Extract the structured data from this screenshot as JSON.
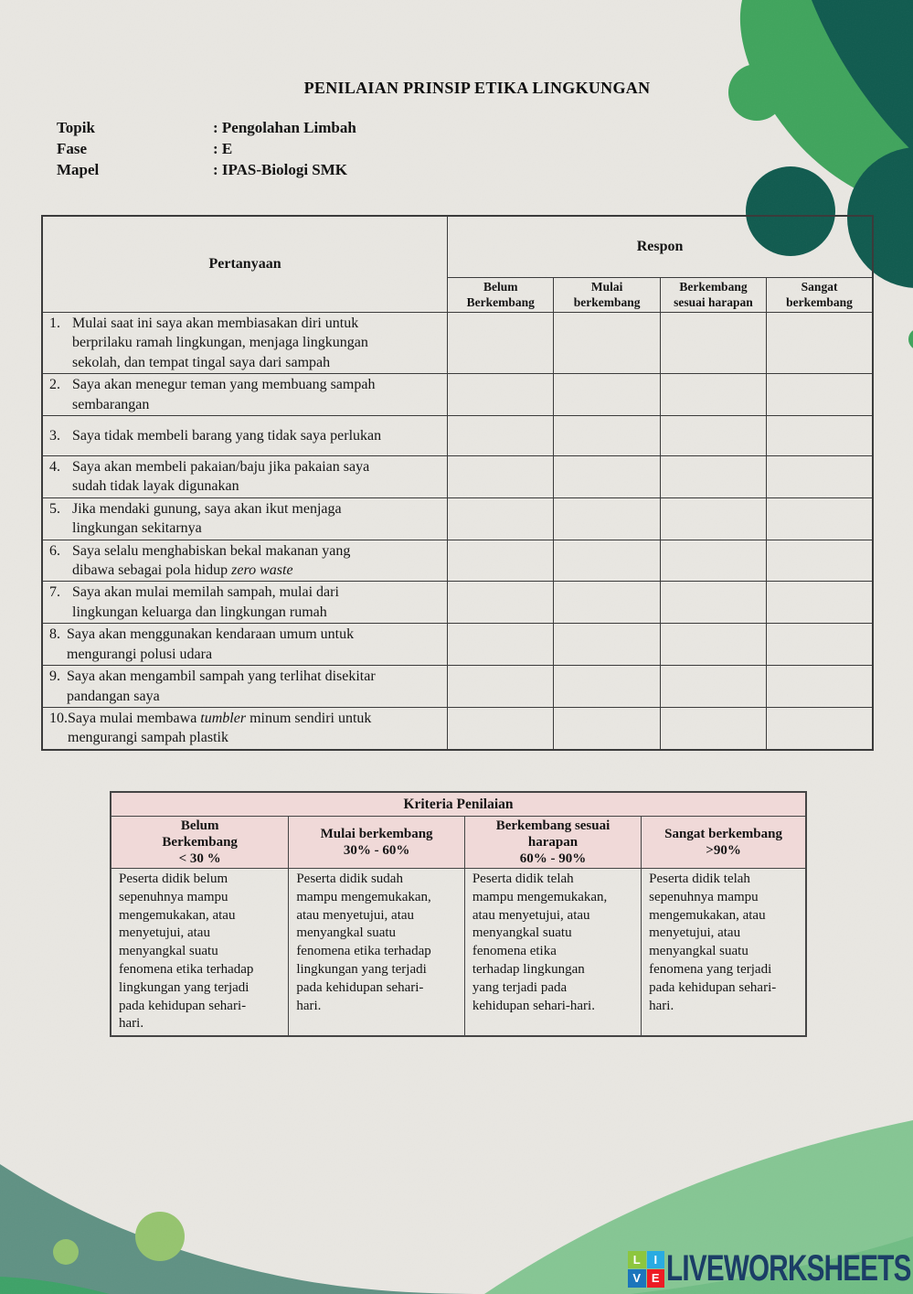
{
  "page": {
    "title": "PENILAIAN PRINSIP ETIKA LINGKUNGAN"
  },
  "info": [
    {
      "label": "Topik",
      "value": ": Pengolahan Limbah"
    },
    {
      "label": "Fase",
      "value": ": E"
    },
    {
      "label": "Mapel",
      "value": ": IPAS-Biologi SMK"
    }
  ],
  "respon_table": {
    "col_question": "Pertanyaan",
    "col_group": "Respon",
    "levels": [
      "Belum\nBerkembang",
      "Mulai\nberkembang",
      "Berkembang\nsesuai harapan",
      "Sangat\nberkembang"
    ],
    "italic_phrases": [
      "zero waste",
      "tumbler"
    ],
    "questions": [
      {
        "num": "1.",
        "text": "Mulai saat ini saya akan membiasakan diri untuk\nberprilaku ramah lingkungan, menjaga lingkungan\nsekolah, dan tempat tingal saya dari sampah"
      },
      {
        "num": "2.",
        "text": "Saya akan menegur teman yang membuang sampah\nsembarangan"
      },
      {
        "num": "3.",
        "text": "Saya tidak membeli barang yang tidak saya perlukan"
      },
      {
        "num": "4.",
        "text": "Saya akan membeli pakaian/baju jika pakaian saya\nsudah tidak layak digunakan"
      },
      {
        "num": "5.",
        "text": "Jika mendaki gunung, saya akan ikut menjaga\nlingkungan sekitarnya"
      },
      {
        "num": "6.",
        "text": "Saya selalu menghabiskan bekal makanan yang\ndibawa sebagai pola hidup zero waste"
      },
      {
        "num": "7.",
        "text": "Saya akan mulai memilah sampah, mulai dari\nlingkungan keluarga dan lingkungan rumah"
      },
      {
        "num": "8.",
        "text": "Saya akan menggunakan kendaraan umum untuk\nmengurangi polusi udara"
      },
      {
        "num": "9.",
        "text": "Saya akan mengambil sampah yang terlihat disekitar\npandangan saya"
      },
      {
        "num": "10.",
        "text": "Saya mulai membawa tumbler minum sendiri untuk\nmengurangi sampah plastik"
      }
    ]
  },
  "kriteria_table": {
    "title": "Kriteria Penilaian",
    "headers": [
      "Belum\nBerkembang\n< 30 %",
      "Mulai berkembang\n30% - 60%",
      "Berkembang sesuai\nharapan\n60% - 90%",
      "Sangat berkembang\n>90%"
    ],
    "cells": [
      "Peserta didik belum\nsepenuhnya mampu\nmengemukakan, atau\nmenyetujui, atau\nmenyangkal suatu\nfenomena etika terhadap\nlingkungan yang terjadi\npada kehidupan sehari-\nhari.",
      "Peserta didik sudah\nmampu mengemukakan,\natau menyetujui, atau\nmenyangkal suatu\nfenomena etika terhadap\nlingkungan yang terjadi\npada kehidupan sehari-\nhari.",
      "Peserta didik telah\nmampu mengemukakan,\natau menyetujui, atau\nmenyangkal suatu\nfenomena etika\nterhadap lingkungan\nyang terjadi pada\nkehidupan sehari-hari.",
      "Peserta didik telah\nsepenuhnya mampu\nmengemukakan, atau\nmenyetujui, atau\nmenyangkal suatu\nfenomena yang terjadi\npada kehidupan sehari-\nhari."
    ]
  },
  "footer": {
    "brand": "LIVEWORKSHEETS",
    "squares": [
      {
        "letter": "L",
        "color": "#8dc63f"
      },
      {
        "letter": "I",
        "color": "#29abe2"
      },
      {
        "letter": "V",
        "color": "#1b75bc"
      },
      {
        "letter": "E",
        "color": "#ed1c24"
      }
    ]
  },
  "colors": {
    "paper": "#e9e7e2",
    "green_mid": "#3fa45c",
    "teal_dark": "#0f5a4e",
    "wave_teal": "#5f9183",
    "wave_light_green": "#7fc48e",
    "circle_light_green": "#95c46e",
    "strip_green": "#3da267",
    "header_pink": "#f0d9d8",
    "logo_navy": "#1b3d66"
  }
}
